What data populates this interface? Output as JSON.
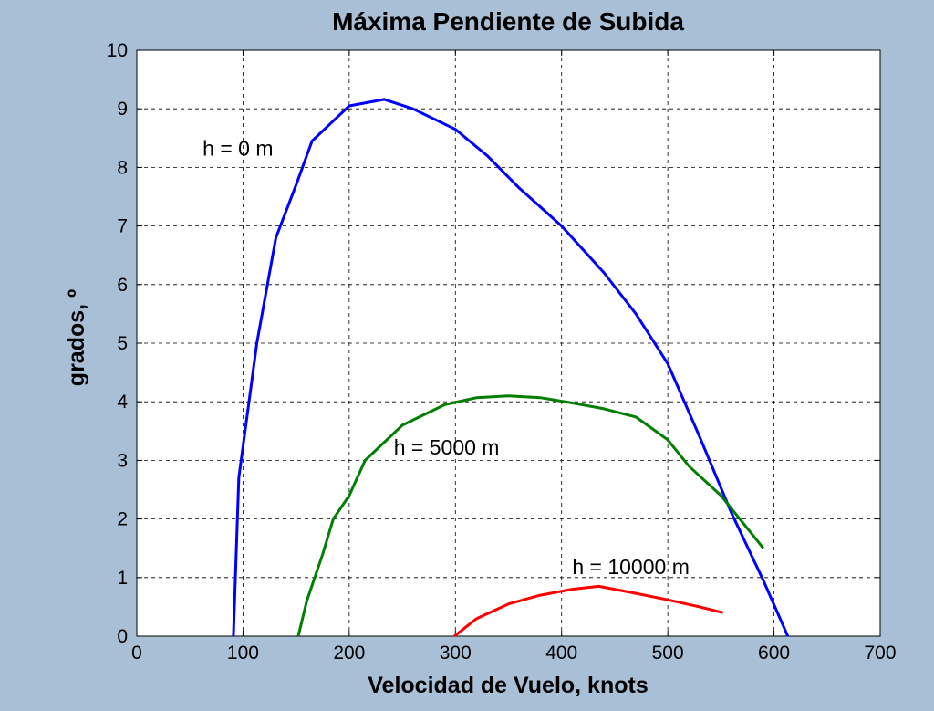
{
  "chart_data": {
    "type": "line",
    "title": "Máxima Pendiente de Subida",
    "xlabel": "Velocidad de Vuelo, knots",
    "ylabel": "grados, º",
    "xlim": [
      0,
      700
    ],
    "ylim": [
      0,
      10
    ],
    "xticks": [
      0,
      100,
      200,
      300,
      400,
      500,
      600,
      700
    ],
    "yticks": [
      0,
      1,
      2,
      3,
      4,
      5,
      6,
      7,
      8,
      9,
      10
    ],
    "grid": true,
    "grid_style": "dashed",
    "background": "#a9bfd6",
    "series": [
      {
        "name": "h = 0 m",
        "color": "#0000ff",
        "x": [
          91,
          96,
          113,
          131,
          150,
          165,
          200,
          233,
          260,
          300,
          330,
          360,
          400,
          440,
          470,
          500,
          530,
          560,
          590,
          613
        ],
        "y": [
          0,
          2.7,
          5.0,
          6.8,
          7.7,
          8.45,
          9.05,
          9.16,
          9.0,
          8.65,
          8.2,
          7.65,
          7.0,
          6.2,
          5.5,
          4.65,
          3.4,
          2.1,
          0.95,
          0
        ]
      },
      {
        "name": "h = 5000 m",
        "color": "#007f00",
        "x": [
          152,
          160,
          175,
          185,
          200,
          215,
          250,
          290,
          320,
          350,
          380,
          410,
          440,
          470,
          500,
          520,
          550,
          590
        ],
        "y": [
          0,
          0.6,
          1.4,
          2.0,
          2.4,
          3.0,
          3.6,
          3.95,
          4.07,
          4.1,
          4.07,
          3.98,
          3.88,
          3.74,
          3.35,
          2.9,
          2.4,
          1.5
        ]
      },
      {
        "name": "h = 10000 m",
        "color": "#ff0000",
        "x": [
          299,
          320,
          350,
          380,
          410,
          435,
          470,
          500,
          530,
          552
        ],
        "y": [
          0,
          0.3,
          0.55,
          0.7,
          0.8,
          0.85,
          0.73,
          0.62,
          0.5,
          0.4
        ]
      }
    ],
    "annotations": [
      {
        "text": "h = 0 m",
        "x": 62,
        "y": 8.2,
        "color": "#000000"
      },
      {
        "text": "h = 5000 m",
        "x": 242,
        "y": 3.1,
        "color": "#000000"
      },
      {
        "text": "h = 10000 m",
        "x": 410,
        "y": 1.06,
        "color": "#000000"
      }
    ]
  }
}
